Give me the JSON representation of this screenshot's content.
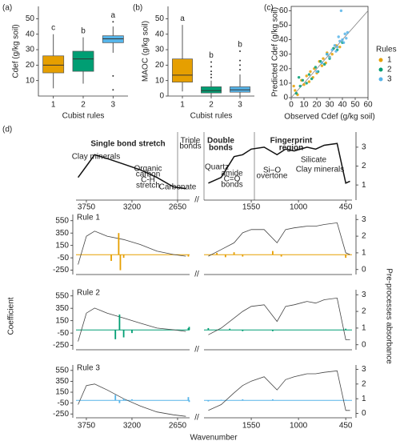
{
  "chart_data": [
    {
      "type": "box",
      "panel_label": "(a)",
      "ylabel": "Cdef (g/kg soil)",
      "xlabel": "Cubist rules",
      "categories": [
        "1",
        "2",
        "3"
      ],
      "colors": [
        "#e69f00",
        "#009e73",
        "#56b4e9"
      ],
      "letters": [
        "c",
        "b",
        "a"
      ],
      "boxes": [
        {
          "whislo": 5,
          "q1": 15,
          "med": 20,
          "q3": 26,
          "whishi": 40,
          "fliers": []
        },
        {
          "whislo": 8,
          "q1": 16,
          "med": 24,
          "q3": 29,
          "whishi": 38,
          "fliers": []
        },
        {
          "whislo": 28,
          "q1": 34.5,
          "med": 37,
          "q3": 39,
          "whishi": 45,
          "fliers": [
            48,
            13,
            4
          ]
        }
      ],
      "ylim": [
        0,
        58
      ],
      "yticks": [
        10,
        20,
        30,
        40,
        50
      ]
    },
    {
      "type": "box",
      "panel_label": "(b)",
      "ylabel": "MAOC (g/kg soil)",
      "xlabel": "Cubist rules",
      "categories": [
        "1",
        "2",
        "3"
      ],
      "colors": [
        "#e69f00",
        "#009e73",
        "#56b4e9"
      ],
      "letters": [
        "a",
        "b",
        "b"
      ],
      "boxes": [
        {
          "whislo": 3,
          "q1": 9,
          "med": 13.5,
          "q3": 24,
          "whishi": 46,
          "fliers": []
        },
        {
          "whislo": 0,
          "q1": 2,
          "med": 3.5,
          "q3": 6,
          "whishi": 10,
          "fliers": [
            12,
            14,
            16,
            19,
            22
          ]
        },
        {
          "whislo": 0,
          "q1": 2.5,
          "med": 4,
          "q3": 6,
          "whishi": 14,
          "fliers": [
            17,
            20,
            23,
            29
          ]
        }
      ],
      "ylim": [
        0,
        58
      ],
      "yticks": [
        0,
        10,
        20,
        30,
        40,
        50
      ]
    },
    {
      "type": "scatter",
      "panel_label": "(c)",
      "xlabel": "Observed Cdef (g/kg soil)",
      "ylabel": "Predicted Cdef (g/kg soil)",
      "legend_title": "Rules",
      "xlim": [
        0,
        60
      ],
      "ylim": [
        0,
        63
      ],
      "xticks": [
        0,
        10,
        20,
        30,
        40,
        50,
        60
      ],
      "yticks": [
        0,
        10,
        20,
        30,
        40,
        50,
        60
      ],
      "series": [
        {
          "name": "1",
          "color": "#e69f00",
          "x": [
            3,
            5,
            8,
            10,
            12,
            14,
            15,
            17,
            18,
            20,
            22,
            24,
            25,
            27,
            28,
            30,
            32,
            35,
            38,
            2
          ],
          "y": [
            5,
            2,
            12,
            9,
            15,
            11,
            18,
            14,
            20,
            17,
            25,
            22,
            27,
            24,
            31,
            28,
            30,
            36,
            35,
            8
          ]
        },
        {
          "name": "2",
          "color": "#009e73",
          "x": [
            4,
            7,
            9,
            12,
            14,
            16,
            19,
            21,
            23,
            26,
            28,
            30,
            33,
            36,
            40,
            6
          ],
          "y": [
            3,
            8,
            12,
            10,
            16,
            13,
            21,
            18,
            25,
            23,
            30,
            27,
            34,
            33,
            38,
            14
          ]
        },
        {
          "name": "3",
          "color": "#56b4e9",
          "x": [
            20,
            24,
            28,
            30,
            32,
            34,
            36,
            38,
            40,
            42,
            44,
            39,
            35,
            41,
            37,
            43
          ],
          "y": [
            18,
            24,
            30,
            28,
            33,
            36,
            35,
            39,
            40,
            44,
            45,
            60,
            32,
            38,
            42,
            41
          ]
        }
      ]
    },
    {
      "type": "spectrum",
      "panel_label": "(d)",
      "annotations": [
        "Single bond stretch",
        "Clay minerals",
        "Organic",
        "carbon",
        "C-H",
        "stretch",
        "Carbonate",
        "Triple",
        "bonds",
        "Double",
        "bonds",
        "Fingerprint",
        "region",
        "Quartz",
        "amide",
        "C=O",
        "bonds",
        "Si–O",
        "overtone",
        "Silicate",
        "Clay minerals"
      ],
      "xlim": [
        [
          3875,
          2505
        ],
        [
          2100,
          377
        ]
      ],
      "xticks": [
        3750,
        3200,
        2650,
        1550,
        1000,
        450
      ],
      "y2lim": [
        0.2,
        3.8
      ],
      "y2ticks": [
        1,
        2,
        3
      ],
      "x": [
        3850,
        3750,
        3650,
        3500,
        3300,
        3100,
        2900,
        2700,
        2550,
        2300,
        2050,
        1900,
        1750,
        1650,
        1550,
        1400,
        1250,
        1150,
        1050,
        900,
        800,
        700,
        550,
        450,
        400
      ],
      "absorbance": [
        1.4,
        2.0,
        2.6,
        2.4,
        2.1,
        1.8,
        1.4,
        0.9,
        0.8,
        null,
        1.1,
        1.4,
        2.5,
        2.6,
        2.9,
        3.0,
        2.6,
        2.9,
        2.8,
        3.0,
        2.9,
        3.1,
        3.2,
        1.1,
        1.2
      ]
    },
    {
      "type": "coefficients",
      "label": "Rule 1",
      "color": "#e69f00",
      "xlim": [
        [
          3875,
          2505
        ],
        [
          2100,
          377
        ]
      ],
      "ylim": [
        -320,
        650
      ],
      "yticks": [
        -250,
        -50,
        150,
        350,
        550
      ],
      "y2lim": [
        -0.3,
        3.3
      ],
      "y2ticks": [
        0,
        1,
        2,
        3
      ],
      "coef_x": [
        3450,
        3360,
        3340,
        3300,
        2520,
        1950,
        1850,
        1750,
        1650,
        1300,
        1200,
        450
      ],
      "coefficients": [
        -100,
        350,
        -250,
        -50,
        -30,
        30,
        -40,
        40,
        -30,
        60,
        -30,
        -50
      ],
      "x": [
        3850,
        3750,
        3650,
        3500,
        3300,
        3100,
        2900,
        2700,
        2550,
        2300,
        2050,
        1900,
        1750,
        1650,
        1550,
        1400,
        1250,
        1150,
        1050,
        900,
        800,
        700,
        550,
        450,
        400
      ],
      "absorbance": [
        0.3,
        2.0,
        2.3,
        2.0,
        1.8,
        1.5,
        1.1,
        0.9,
        0.8,
        null,
        0.8,
        1.2,
        1.6,
        2.2,
        2.4,
        2.4,
        1.6,
        2.4,
        2.5,
        2.6,
        2.6,
        2.7,
        2.8,
        1.0,
        0.9
      ]
    },
    {
      "type": "coefficients",
      "label": "Rule 2",
      "color": "#009e73",
      "ylabel": "Coefficient",
      "y2label": "Pre-processes absorbance",
      "xlim": [
        [
          3875,
          2505
        ],
        [
          2100,
          377
        ]
      ],
      "ylim": [
        -320,
        650
      ],
      "yticks": [
        -250,
        -50,
        150,
        350,
        550
      ],
      "y2lim": [
        -0.3,
        3.3
      ],
      "y2ticks": [
        0,
        1,
        2,
        3
      ],
      "coef_x": [
        3400,
        3350,
        3300,
        3200,
        2520,
        2510,
        2050,
        1800,
        1650,
        1300,
        450
      ],
      "coefficients": [
        -150,
        250,
        -120,
        -50,
        30,
        50,
        30,
        20,
        -20,
        -20,
        20
      ],
      "x": [
        3850,
        3750,
        3650,
        3500,
        3300,
        3100,
        2900,
        2700,
        2550,
        2300,
        2050,
        1900,
        1750,
        1650,
        1550,
        1400,
        1250,
        1150,
        1050,
        900,
        800,
        700,
        550,
        450,
        400
      ],
      "absorbance": [
        0.2,
        1.9,
        2.2,
        1.9,
        1.6,
        1.3,
        1.0,
        0.9,
        0.8,
        null,
        0.6,
        1.0,
        1.6,
        2.0,
        2.3,
        2.4,
        1.4,
        2.3,
        2.4,
        2.6,
        2.5,
        2.7,
        2.8,
        0.3,
        0.3
      ]
    },
    {
      "type": "coefficients",
      "label": "Rule 3",
      "color": "#56b4e9",
      "xlabel": "Wavenumber",
      "xlim": [
        [
          3875,
          2505
        ],
        [
          2100,
          377
        ]
      ],
      "xticks": [
        3750,
        3200,
        2650,
        1550,
        1000,
        450
      ],
      "ylim": [
        -320,
        650
      ],
      "yticks": [
        -250,
        -50,
        150,
        350,
        550
      ],
      "y2lim": [
        -0.3,
        3.3
      ],
      "y2ticks": [
        0,
        1,
        2,
        3
      ],
      "coef_x": [
        3400,
        3350,
        3300,
        3200,
        2520,
        2510,
        2050,
        1900,
        1650,
        1300,
        450
      ],
      "coefficients": [
        100,
        -50,
        30,
        20,
        60,
        -30,
        -20,
        10,
        20,
        20,
        10
      ],
      "x": [
        3850,
        3750,
        3650,
        3500,
        3300,
        3100,
        2900,
        2700,
        2550,
        2300,
        2050,
        1900,
        1750,
        1650,
        1550,
        1400,
        1250,
        1150,
        1050,
        900,
        800,
        700,
        550,
        450,
        400
      ],
      "absorbance": [
        0.6,
        1.9,
        2.0,
        1.6,
        1.0,
        0.5,
        0.1,
        -0.1,
        -0.2,
        null,
        0.2,
        0.6,
        1.4,
        1.9,
        2.2,
        2.5,
        1.6,
        2.3,
        2.5,
        2.7,
        2.7,
        2.8,
        2.9,
        0.2,
        0.2
      ]
    }
  ]
}
